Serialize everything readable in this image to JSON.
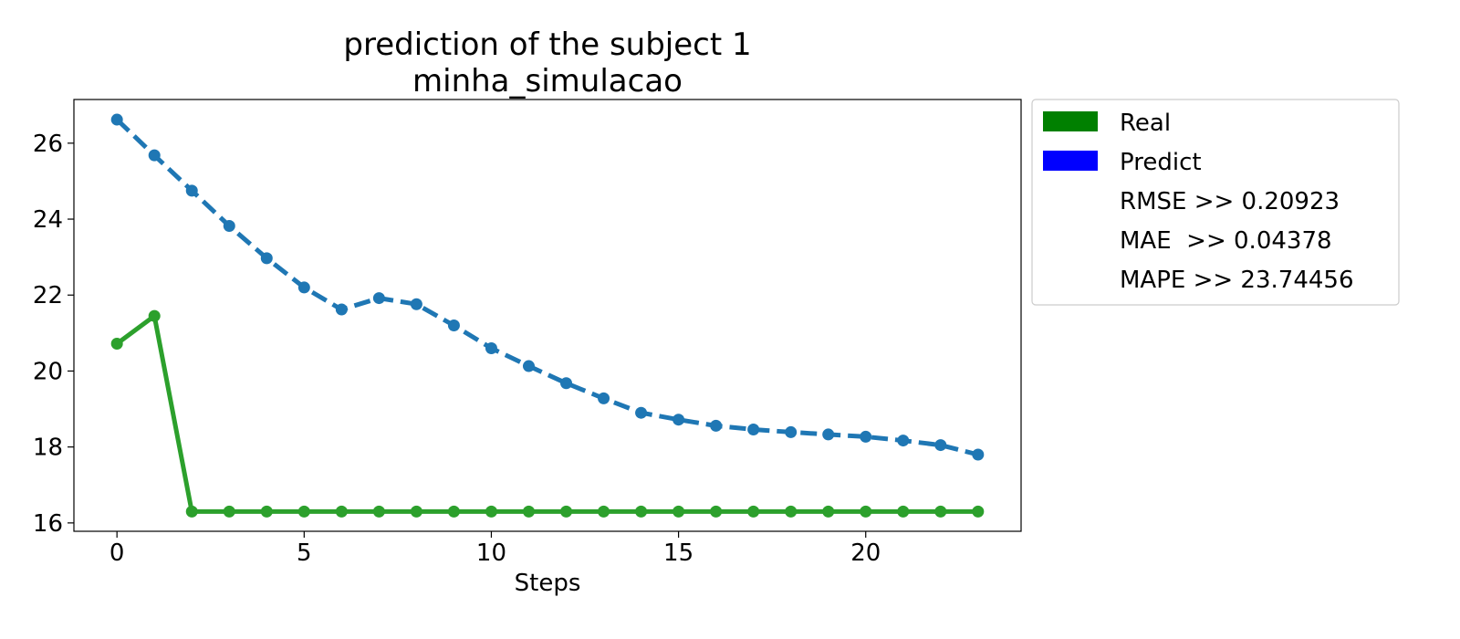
{
  "chart_data": {
    "type": "line",
    "title": "prediction of the subject 1",
    "subtitle": "minha_simulacao",
    "xlabel": "Steps",
    "ylabel": "",
    "xlim": [
      -1.15,
      24.15
    ],
    "ylim": [
      15.78,
      27.15
    ],
    "xticks": [
      0,
      5,
      10,
      15,
      20
    ],
    "yticks": [
      16,
      18,
      20,
      22,
      24,
      26
    ],
    "grid": false,
    "legend_position": "outside-right",
    "x": [
      0,
      1,
      2,
      3,
      4,
      5,
      6,
      7,
      8,
      9,
      10,
      11,
      12,
      13,
      14,
      15,
      16,
      17,
      18,
      19,
      20,
      21,
      22,
      23
    ],
    "series": [
      {
        "name": "Real",
        "color": "#2ca02c",
        "legend_color": "#008000",
        "line_style": "solid",
        "values": [
          20.72,
          21.45,
          16.3,
          16.3,
          16.3,
          16.3,
          16.3,
          16.3,
          16.3,
          16.3,
          16.3,
          16.3,
          16.3,
          16.3,
          16.3,
          16.3,
          16.3,
          16.3,
          16.3,
          16.3,
          16.3,
          16.3,
          16.3,
          16.3
        ]
      },
      {
        "name": "Predict",
        "color": "#1f77b4",
        "legend_color": "#0000ff",
        "line_style": "dashed",
        "values": [
          26.62,
          25.68,
          24.75,
          23.82,
          22.97,
          22.2,
          21.62,
          21.92,
          21.76,
          21.2,
          20.6,
          20.13,
          19.68,
          19.28,
          18.9,
          18.72,
          18.56,
          18.46,
          18.39,
          18.33,
          18.27,
          18.17,
          18.05,
          17.8
        ]
      }
    ],
    "legend_notes": [
      "RMSE >> 0.20923",
      "MAE  >> 0.04378",
      "MAPE >> 23.74456"
    ]
  }
}
